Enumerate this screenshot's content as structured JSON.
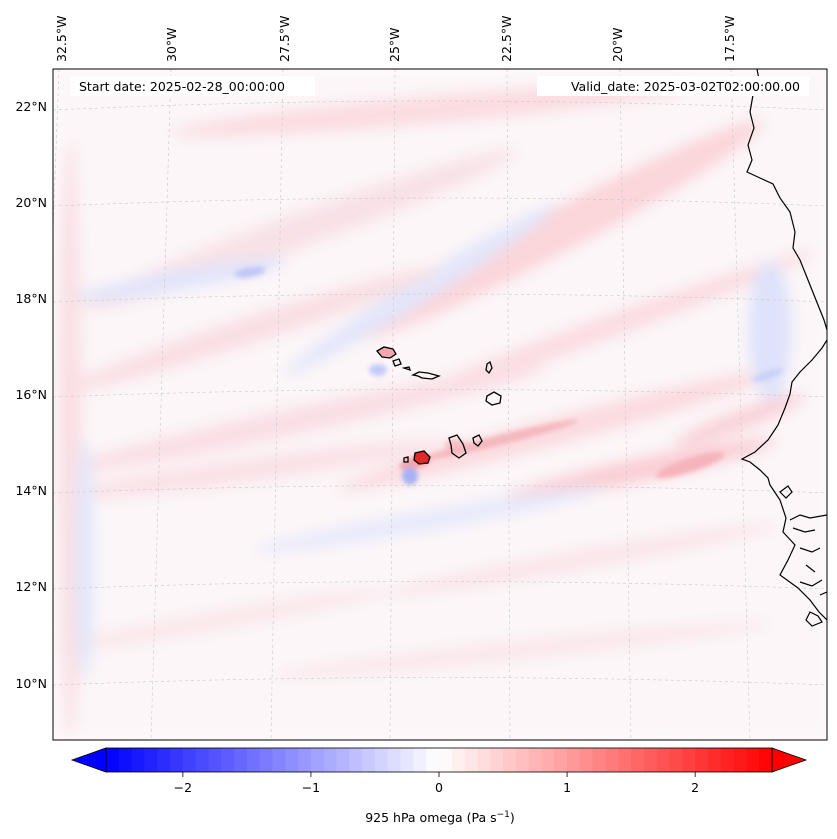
{
  "map": {
    "start_date": "Start date: 2025-02-28_00:00:00",
    "valid_date": "Valid_date: 2025-03-02T02:00:00.00",
    "lon_labels": [
      "32.5°W",
      "30°W",
      "27.5°W",
      "25°W",
      "22.5°W",
      "20°W",
      "17.5°W"
    ],
    "lat_labels": [
      "22°N",
      "20°N",
      "18°N",
      "16°N",
      "14°N",
      "12°N",
      "10°N"
    ],
    "field": "925 hPa omega",
    "region": "Cabo Verde / West African coast"
  },
  "colorbar": {
    "label_text": "925 hPa omega (Pa s",
    "label_sup": "−1",
    "label_close": ")",
    "ticks": [
      "−2",
      "−1",
      "0",
      "1",
      "2"
    ],
    "tick_values": [
      -2,
      -1,
      0,
      1,
      2
    ],
    "range": [
      -2.6,
      2.6
    ],
    "extend": "both",
    "colormap": "bwr",
    "colors": {
      "min": "#0000ff",
      "mid": "#ffffff",
      "max": "#ff0000"
    }
  }
}
